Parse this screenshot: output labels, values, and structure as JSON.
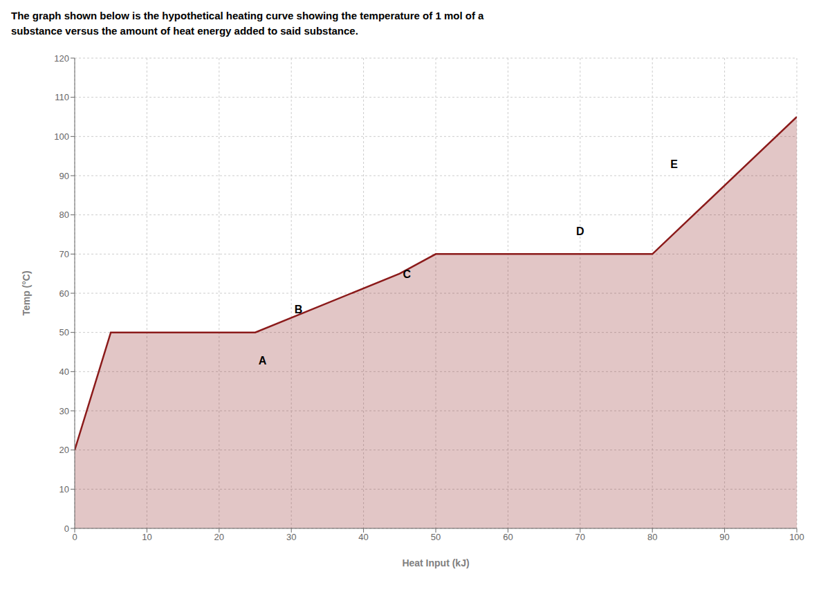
{
  "chart_data": {
    "type": "area",
    "title": [
      "The graph shown below is the hypothetical heating curve showing the temperature of 1 mol of a",
      "substance versus the amount of heat energy added to said substance."
    ],
    "x_label": "Heat Input (kJ)",
    "y_label": "Temp (°C)",
    "x": [
      0,
      5,
      25,
      45,
      50,
      80,
      100
    ],
    "values": [
      20,
      50,
      50,
      65,
      70,
      70,
      105
    ],
    "color": "#8B1A1A",
    "xlim": [
      0,
      100
    ],
    "ylim": [
      0,
      120
    ],
    "xticks": [
      0,
      10,
      20,
      30,
      40,
      50,
      60,
      70,
      80,
      90,
      100
    ],
    "yticks": [
      0,
      10,
      20,
      30,
      40,
      50,
      60,
      70,
      80,
      90,
      100,
      110,
      120
    ],
    "grid": true,
    "annotations": [
      {
        "text": "A",
        "x": 26,
        "y": 41
      },
      {
        "text": "B",
        "x": 31,
        "y": 54
      },
      {
        "text": "C",
        "x": 46,
        "y": 63
      },
      {
        "text": "D",
        "x": 70,
        "y": 74
      },
      {
        "text": "E",
        "x": 83,
        "y": 91
      }
    ]
  }
}
